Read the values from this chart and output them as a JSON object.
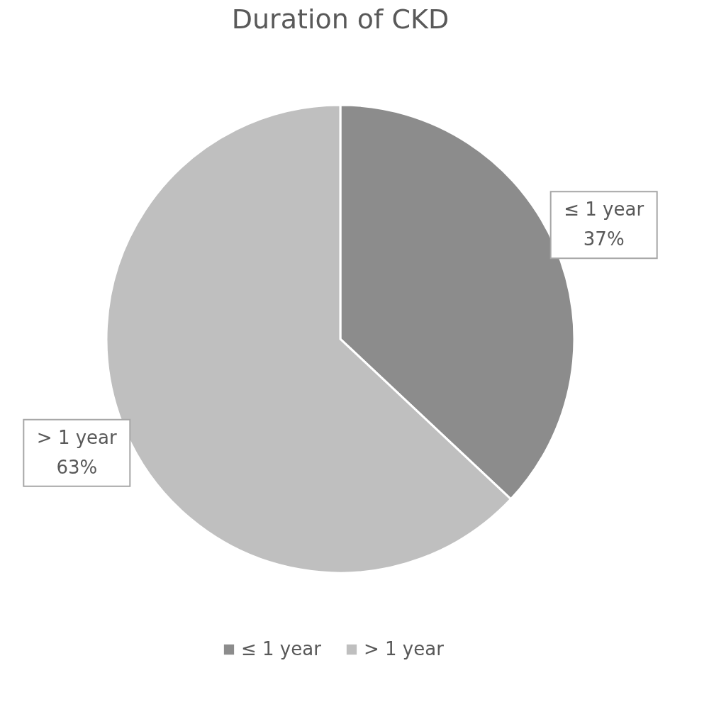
{
  "chart_data": {
    "type": "pie",
    "title": "Duration of CKD",
    "categories": [
      "≤ 1 year",
      "> 1 year"
    ],
    "values": [
      37,
      63
    ],
    "colors": [
      "#8c8c8c",
      "#bfbfbf"
    ],
    "value_labels": [
      "37%",
      "63%"
    ],
    "legend": "bottom"
  }
}
